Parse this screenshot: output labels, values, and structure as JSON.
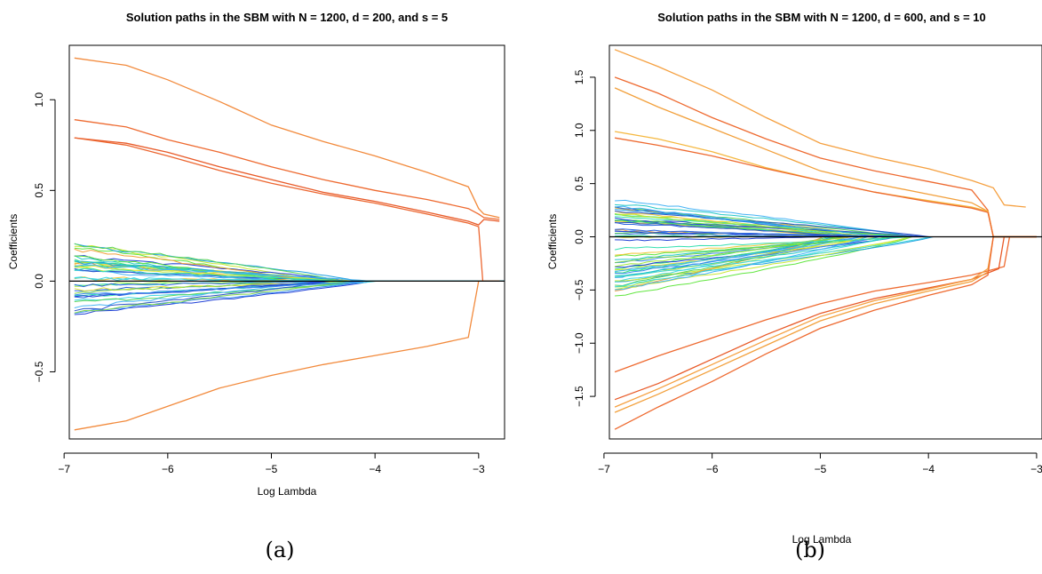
{
  "chart_data": [
    {
      "type": "line",
      "panel_label": "(a)",
      "title": "Solution paths in the SBM with N = 1200, d = 200, and s = 5",
      "xlabel": "Log Lambda",
      "ylabel": "Coefficients",
      "xlim": [
        -6.95,
        -2.75
      ],
      "ylim": [
        -0.87,
        1.3
      ],
      "xticks": [
        -7,
        -6,
        -5,
        -4,
        -3
      ],
      "xtick_labels": [
        "−7",
        "−6",
        "−5",
        "−4",
        "−3"
      ],
      "yticks": [
        -0.5,
        0.0,
        0.5,
        1.0
      ],
      "ytick_labels": [
        "−0.5",
        "0.0",
        "0.5",
        "1.0"
      ],
      "zero_line": true,
      "grid": false,
      "legend": "none",
      "series": [
        {
          "color": "#f28a3c",
          "x": [
            -6.9,
            -6.4,
            -6.0,
            -5.5,
            -5.0,
            -4.5,
            -4.0,
            -3.5,
            -3.1,
            -3.0,
            -2.95,
            -2.8
          ],
          "values": [
            1.23,
            1.19,
            1.11,
            0.99,
            0.86,
            0.77,
            0.69,
            0.6,
            0.52,
            0.4,
            0.37,
            0.35
          ]
        },
        {
          "color": "#ee6a30",
          "x": [
            -6.9,
            -6.4,
            -6.0,
            -5.5,
            -5.0,
            -4.5,
            -4.0,
            -3.5,
            -3.1,
            -3.0,
            -2.95,
            -2.8
          ],
          "values": [
            0.89,
            0.85,
            0.78,
            0.71,
            0.63,
            0.56,
            0.5,
            0.45,
            0.4,
            0.37,
            0.35,
            0.34
          ]
        },
        {
          "color": "#e85a28",
          "x": [
            -6.9,
            -6.4,
            -6.0,
            -5.5,
            -5.0,
            -4.5,
            -4.0,
            -3.5,
            -3.1,
            -3.0,
            -2.95,
            -2.8
          ],
          "values": [
            0.79,
            0.76,
            0.71,
            0.63,
            0.56,
            0.49,
            0.44,
            0.38,
            0.33,
            0.31,
            0.34,
            0.33
          ]
        },
        {
          "color": "#ec6630",
          "x": [
            -6.9,
            -6.4,
            -6.0,
            -5.5,
            -5.0,
            -4.5,
            -4.0,
            -3.5,
            -3.1,
            -3.0,
            -2.96,
            -2.8
          ],
          "values": [
            0.79,
            0.75,
            0.69,
            0.61,
            0.54,
            0.48,
            0.43,
            0.37,
            0.32,
            0.3,
            0.0,
            0.0
          ]
        },
        {
          "color": "#f28a3c",
          "x": [
            -6.9,
            -6.4,
            -6.0,
            -5.5,
            -5.0,
            -4.5,
            -4.0,
            -3.5,
            -3.1,
            -3.0,
            -2.8
          ],
          "values": [
            -0.82,
            -0.77,
            -0.69,
            -0.59,
            -0.52,
            -0.46,
            -0.41,
            -0.36,
            -0.31,
            0.0,
            0.0
          ]
        }
      ],
      "noise_paths": {
        "count": 42,
        "amplitude_range": [
          -0.18,
          0.21
        ],
        "zero_at": [
          -4.9,
          -3.95
        ]
      }
    },
    {
      "type": "line",
      "panel_label": "(b)",
      "title": "Solution paths in the SBM with N = 1200, d = 600, and s = 10",
      "xlabel": "Log Lambda",
      "ylabel": "Coefficients",
      "xlim": [
        -6.95,
        -2.95
      ],
      "ylim": [
        -1.9,
        1.8
      ],
      "xticks": [
        -7,
        -6,
        -5,
        -4,
        -3
      ],
      "xtick_labels": [
        "−7",
        "−6",
        "−5",
        "−4",
        "−3"
      ],
      "yticks": [
        -1.5,
        -1.0,
        -0.5,
        0.0,
        0.5,
        1.0,
        1.5
      ],
      "ytick_labels": [
        "−1.5",
        "−1.0",
        "−0.5",
        "0.0",
        "0.5",
        "1.0",
        "1.5"
      ],
      "zero_line": true,
      "grid": false,
      "legend": "none",
      "series": [
        {
          "color": "#f5a040",
          "x": [
            -6.9,
            -6.5,
            -6.0,
            -5.5,
            -5.0,
            -4.5,
            -4.0,
            -3.6,
            -3.4,
            -3.3,
            -3.1
          ],
          "values": [
            1.76,
            1.6,
            1.38,
            1.12,
            0.88,
            0.75,
            0.64,
            0.53,
            0.46,
            0.3,
            0.28
          ]
        },
        {
          "color": "#ee6a30",
          "x": [
            -6.9,
            -6.5,
            -6.0,
            -5.5,
            -5.0,
            -4.5,
            -4.0,
            -3.6,
            -3.45,
            -3.4,
            -3.0
          ],
          "values": [
            1.5,
            1.35,
            1.12,
            0.92,
            0.74,
            0.62,
            0.52,
            0.44,
            0.25,
            0.0,
            0.0
          ]
        },
        {
          "color": "#f2a03c",
          "x": [
            -6.9,
            -6.5,
            -6.0,
            -5.5,
            -5.0,
            -4.5,
            -4.0,
            -3.6,
            -3.45,
            -3.4,
            -3.0
          ],
          "values": [
            1.4,
            1.22,
            1.02,
            0.82,
            0.62,
            0.5,
            0.4,
            0.32,
            0.24,
            0.0,
            0.0
          ]
        },
        {
          "color": "#f5b840",
          "x": [
            -6.9,
            -6.5,
            -6.0,
            -5.5,
            -5.0,
            -4.5,
            -4.0,
            -3.6,
            -3.45,
            -3.4,
            -3.0
          ],
          "values": [
            0.99,
            0.92,
            0.8,
            0.65,
            0.53,
            0.42,
            0.34,
            0.28,
            0.24,
            0.0,
            0.0
          ]
        },
        {
          "color": "#ee6a30",
          "x": [
            -6.9,
            -6.5,
            -6.0,
            -5.5,
            -5.0,
            -4.5,
            -4.0,
            -3.6,
            -3.45,
            -3.4,
            -3.0
          ],
          "values": [
            0.93,
            0.86,
            0.76,
            0.64,
            0.53,
            0.42,
            0.33,
            0.27,
            0.23,
            0.0,
            0.0
          ]
        },
        {
          "color": "#ee6a30",
          "x": [
            -6.9,
            -6.5,
            -6.0,
            -5.5,
            -5.0,
            -4.5,
            -4.0,
            -3.6,
            -3.3,
            -3.25,
            -3.0
          ],
          "values": [
            -1.27,
            -1.12,
            -0.95,
            -0.78,
            -0.63,
            -0.51,
            -0.43,
            -0.36,
            -0.28,
            0.0,
            0.0
          ]
        },
        {
          "color": "#e85a28",
          "x": [
            -6.9,
            -6.5,
            -6.0,
            -5.5,
            -5.0,
            -4.5,
            -4.0,
            -3.6,
            -3.35,
            -3.3,
            -3.0
          ],
          "values": [
            -1.53,
            -1.38,
            -1.15,
            -0.92,
            -0.72,
            -0.58,
            -0.48,
            -0.4,
            -0.3,
            0.0,
            0.0
          ]
        },
        {
          "color": "#f5a040",
          "x": [
            -6.9,
            -6.5,
            -6.0,
            -5.5,
            -5.0,
            -4.5,
            -4.0,
            -3.6,
            -3.45,
            -3.4,
            -3.0
          ],
          "values": [
            -1.6,
            -1.43,
            -1.2,
            -0.97,
            -0.75,
            -0.6,
            -0.49,
            -0.4,
            -0.3,
            0.0,
            0.0
          ]
        },
        {
          "color": "#f2a03c",
          "x": [
            -6.9,
            -6.5,
            -6.0,
            -5.5,
            -5.0,
            -4.5,
            -4.0,
            -3.6,
            -3.45,
            -3.4,
            -3.0
          ],
          "values": [
            -1.65,
            -1.48,
            -1.25,
            -1.02,
            -0.79,
            -0.63,
            -0.51,
            -0.42,
            -0.33,
            0.0,
            0.0
          ]
        },
        {
          "color": "#ee6a30",
          "x": [
            -6.9,
            -6.5,
            -6.0,
            -5.5,
            -5.0,
            -4.5,
            -4.0,
            -3.6,
            -3.45,
            -3.4,
            -3.0
          ],
          "values": [
            -1.81,
            -1.6,
            -1.36,
            -1.1,
            -0.86,
            -0.69,
            -0.55,
            -0.45,
            -0.36,
            0.0,
            0.0
          ]
        }
      ],
      "noise_paths": {
        "count": 60,
        "amplitude_range": [
          -0.57,
          0.36
        ],
        "zero_at": [
          -5.0,
          -3.95
        ]
      }
    }
  ]
}
